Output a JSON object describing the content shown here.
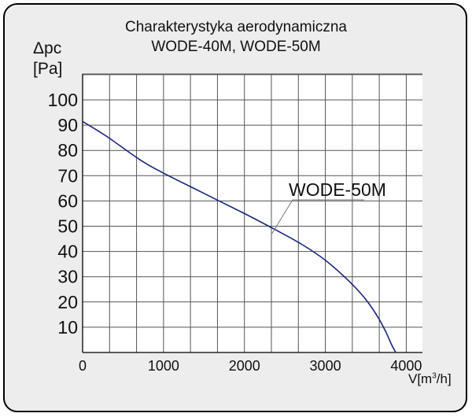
{
  "chart_data": {
    "type": "line",
    "title": "Charakterystyka aerodynamiczna",
    "subtitle": "WODE-40M, WODE-50M",
    "ylabel_line1": "Δpc",
    "ylabel_line2": "[Pa]",
    "xlabel_main": "V[m",
    "xlabel_sup": "3",
    "xlabel_end": "/h]",
    "xlim": [
      0,
      4200
    ],
    "ylim": [
      0,
      100
    ],
    "x_ticks": [
      0,
      1000,
      2000,
      3000,
      4000
    ],
    "y_ticks": [
      10,
      20,
      30,
      40,
      50,
      60,
      70,
      80,
      90,
      100
    ],
    "x_grid_step": 333.33,
    "y_grid_step": 10,
    "grid": true,
    "curve_color": "#1a237e",
    "series": [
      {
        "name": "WODE-50M",
        "x": [
          0,
          300,
          700,
          1000,
          1500,
          2000,
          2300,
          2700,
          3000,
          3300,
          3500,
          3650,
          3750,
          3820,
          3870
        ],
        "y": [
          91.5,
          85.5,
          76.5,
          71,
          63,
          55,
          50,
          43,
          36.5,
          28,
          21,
          14,
          8,
          3,
          0
        ]
      }
    ],
    "annotation": {
      "text": "WODE-50M",
      "target_x": 2300,
      "target_y": 47
    }
  }
}
